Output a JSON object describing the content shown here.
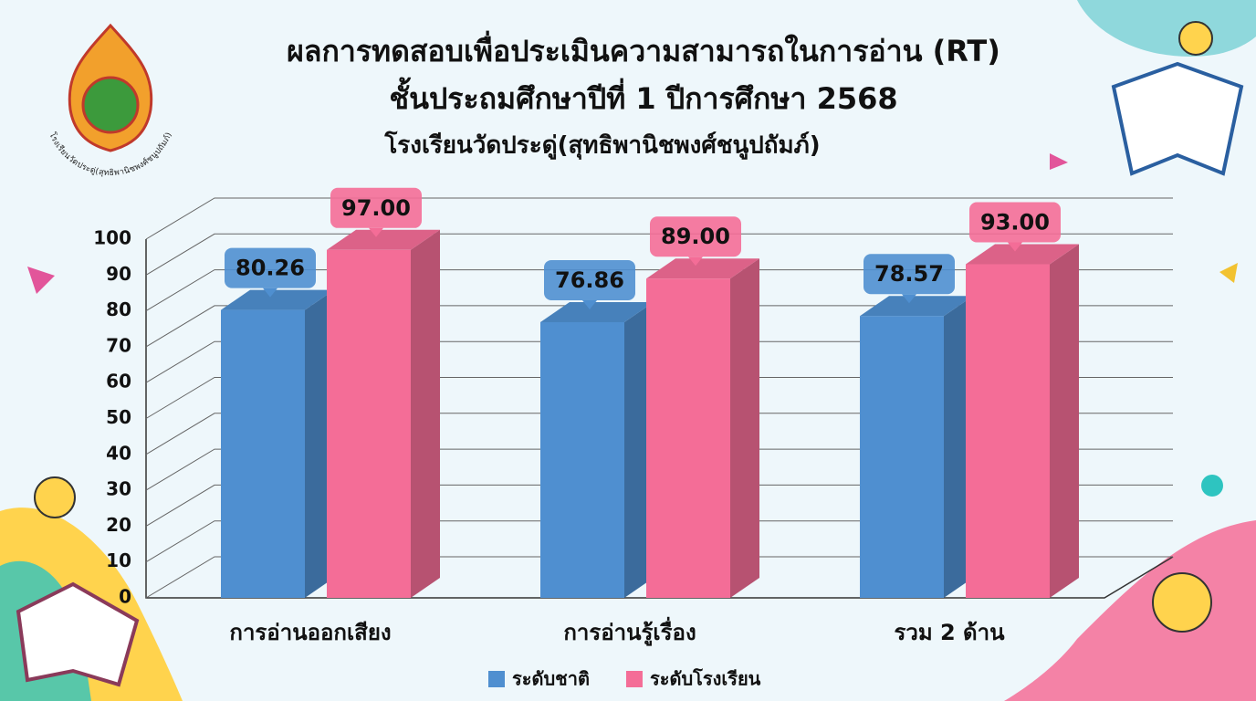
{
  "chart_data": {
    "type": "bar3d",
    "title": "ผลการทดสอบเพื่อประเมินความสามารถในการอ่าน (RT)",
    "subtitle": "ชั้นประถมศึกษาปีที่ 1 ปีการศึกษา 2568",
    "school": "โรงเรียนวัดประดู่(สุทธิพานิชพงศ์ชนูปถัมภ์)",
    "categories": [
      "การอ่านออกเสียง",
      "การอ่านรู้เรื่อง",
      "รวม 2 ด้าน"
    ],
    "series": [
      {
        "name": "ระดับชาติ",
        "color": "#4f8fd0",
        "values": [
          80.26,
          76.86,
          78.57
        ],
        "value_labels": [
          "80.26",
          "76.86",
          "78.57"
        ]
      },
      {
        "name": "ระดับโรงเรียน",
        "color": "#f46d97",
        "values": [
          97,
          89,
          93
        ],
        "value_labels": [
          "97.00",
          "89.00",
          "93.00"
        ]
      }
    ],
    "ylim": [
      0,
      100
    ],
    "yticks": [
      0,
      10,
      20,
      30,
      40,
      50,
      60,
      70,
      80,
      90,
      100
    ],
    "grid": true,
    "legend": "bottom"
  }
}
